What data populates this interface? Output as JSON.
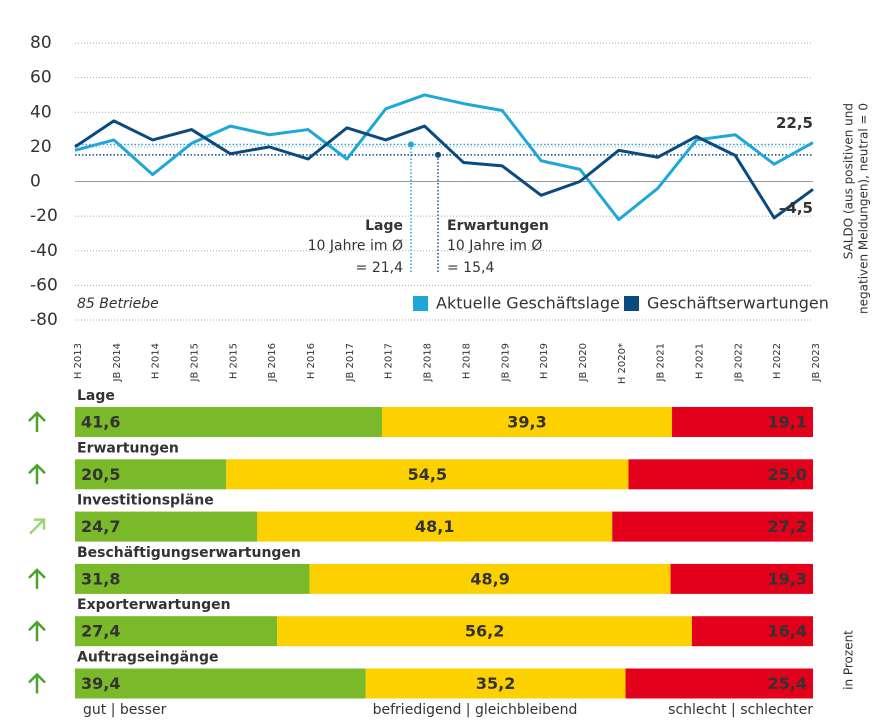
{
  "chart_data": [
    {
      "type": "line",
      "categories": [
        "H 2013",
        "JB 2014",
        "H 2014",
        "JB 2015",
        "H 2015",
        "JB 2016",
        "H 2016",
        "JB 2017",
        "H 2017",
        "JB 2018",
        "H 2018",
        "JB 2019",
        "H 2019",
        "JB 2020",
        "H 2020*",
        "JB 2021",
        "H 2021",
        "JB 2022",
        "H 2022",
        "JB 2023"
      ],
      "series": [
        {
          "name": "Aktuelle Geschäftslage",
          "color": "#1ea7d8",
          "values": [
            18,
            24,
            4,
            22,
            32,
            27,
            30,
            13,
            42,
            50,
            45,
            41,
            12,
            7,
            -22,
            -4,
            24,
            27,
            10,
            22.5
          ],
          "value_labels": [
            null,
            null,
            null,
            null,
            null,
            null,
            null,
            null,
            null,
            null,
            null,
            null,
            null,
            null,
            null,
            null,
            null,
            null,
            null,
            "22,5"
          ]
        },
        {
          "name": "Geschäftserwartungen",
          "color": "#0a4a7f",
          "values": [
            20,
            35,
            24,
            30,
            16,
            20,
            13,
            31,
            24,
            32,
            11,
            9,
            -8,
            0,
            18,
            14,
            26,
            15,
            -21,
            -4.5
          ],
          "value_labels": [
            null,
            null,
            null,
            null,
            null,
            null,
            null,
            null,
            null,
            null,
            null,
            null,
            null,
            null,
            null,
            null,
            null,
            null,
            null,
            "–4,5"
          ]
        }
      ],
      "averages": [
        {
          "label": "Lage",
          "note": "10 Jahre im Ø",
          "value": 21.4,
          "value_label": "= 21,4",
          "color": "#1ea7d8"
        },
        {
          "label": "Erwartungen",
          "note": "10 Jahre im Ø",
          "value": 15.4,
          "value_label": "= 15,4",
          "color": "#0a4a7f"
        }
      ],
      "ylim": [
        -80,
        80
      ],
      "yticks": [
        -80,
        -60,
        -40,
        -20,
        0,
        20,
        40,
        60,
        80
      ],
      "grid": true,
      "y_label": [
        "SALDO (aus positiven und",
        "negativen Meldungen), neutral = 0"
      ],
      "note": "85 Betriebe"
    },
    {
      "type": "stacked_bar_h",
      "xlim": [
        0,
        100
      ],
      "segments": [
        {
          "name": "gut | besser",
          "color": "#7ab929"
        },
        {
          "name": "befriedigend | gleichbleibend",
          "color": "#fdd000"
        },
        {
          "name": "schlecht | schlechter",
          "color": "#e2001a"
        }
      ],
      "rows": [
        {
          "label": "Lage",
          "trend": "up",
          "values": [
            41.6,
            39.3,
            19.1
          ],
          "value_labels": [
            "41,6",
            "39,3",
            "19,1"
          ]
        },
        {
          "label": "Erwartungen",
          "trend": "up",
          "values": [
            20.5,
            54.5,
            25.0
          ],
          "value_labels": [
            "20,5",
            "54,5",
            "25,0"
          ]
        },
        {
          "label": "Investitionspläne",
          "trend": "up-right",
          "values": [
            24.7,
            48.1,
            27.2
          ],
          "value_labels": [
            "24,7",
            "48,1",
            "27,2"
          ]
        },
        {
          "label": "Beschäftigungserwartungen",
          "trend": "up",
          "values": [
            31.8,
            48.9,
            19.3
          ],
          "value_labels": [
            "31,8",
            "48,9",
            "19,3"
          ]
        },
        {
          "label": "Exporterwartungen",
          "trend": "up",
          "values": [
            27.4,
            56.2,
            16.4
          ],
          "value_labels": [
            "27,4",
            "56,2",
            "16,4"
          ]
        },
        {
          "label": "Auftragseingänge",
          "trend": "up",
          "values": [
            39.4,
            35.2,
            25.4
          ],
          "value_labels": [
            "39,4",
            "35,2",
            "25,4"
          ]
        }
      ],
      "unit_label": "in Prozent"
    }
  ]
}
